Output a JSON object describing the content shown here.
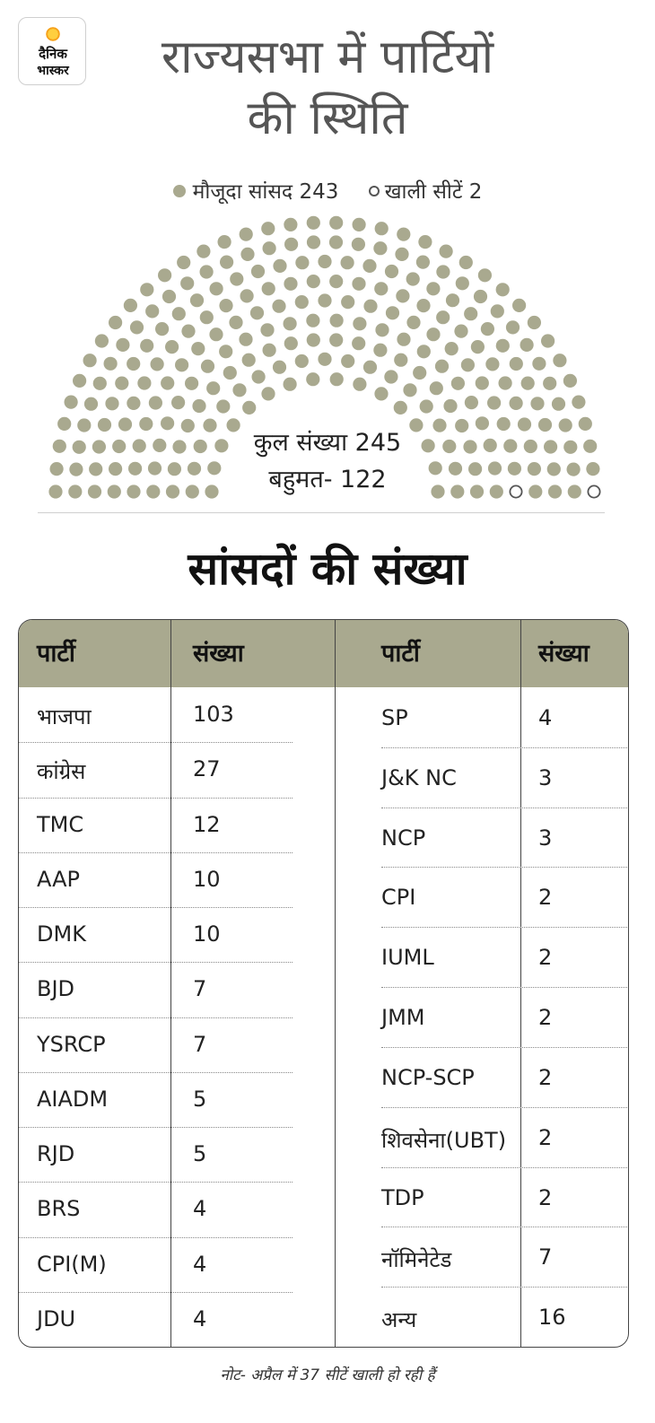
{
  "logo": {
    "line1": "दैनिक",
    "line2": "भास्कर"
  },
  "title": {
    "line1": "राज्यसभा में पार्टियों",
    "line2": "की स्थिति"
  },
  "legend": {
    "filled": "मौजूदा सांसद 243",
    "empty": "खाली सीटें 2"
  },
  "hemicycle": {
    "total_label": "कुल संख्या 245",
    "majority_label": "बहुमत- 122",
    "filled": 243,
    "vacant": 2,
    "filled_color": "#a9a98f",
    "vacant_color": "#555555"
  },
  "subtitle": "सांसदों की संख्या",
  "chart_data": {
    "type": "table",
    "columns": [
      "पार्टी",
      "संख्या"
    ],
    "left": [
      [
        "भाजपा",
        "103"
      ],
      [
        "कांग्रेस",
        "27"
      ],
      [
        "TMC",
        "12"
      ],
      [
        "AAP",
        "10"
      ],
      [
        "DMK",
        "10"
      ],
      [
        "BJD",
        "7"
      ],
      [
        "YSRCP",
        "7"
      ],
      [
        "AIADM",
        "5"
      ],
      [
        "RJD",
        "5"
      ],
      [
        "BRS",
        "4"
      ],
      [
        "CPI(M)",
        "4"
      ],
      [
        "JDU",
        "4"
      ]
    ],
    "right": [
      [
        "SP",
        "4"
      ],
      [
        "J&K NC",
        "3"
      ],
      [
        "NCP",
        "3"
      ],
      [
        "CPI",
        "2"
      ],
      [
        "IUML",
        "2"
      ],
      [
        "JMM",
        "2"
      ],
      [
        "NCP-SCP",
        "2"
      ],
      [
        "शिवसेना(UBT)",
        "2"
      ],
      [
        "TDP",
        "2"
      ],
      [
        "नॉमिनेटेड",
        "7"
      ],
      [
        "अन्य",
        "16"
      ]
    ]
  },
  "note": "नोट- अप्रैल में 37 सीटें खाली हो रही हैं"
}
